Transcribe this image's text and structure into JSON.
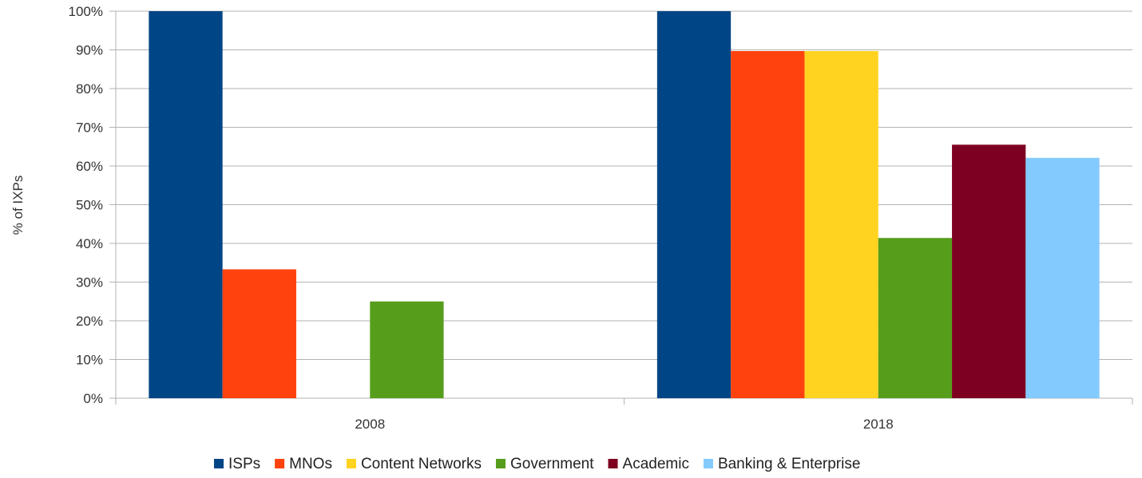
{
  "chart_data": {
    "type": "bar",
    "title": "",
    "xlabel": "",
    "ylabel": "% of IXPs",
    "ylim": [
      0,
      100
    ],
    "yticks": [
      "0%",
      "10%",
      "20%",
      "30%",
      "40%",
      "50%",
      "60%",
      "70%",
      "80%",
      "90%",
      "100%"
    ],
    "categories": [
      "2008",
      "2018"
    ],
    "grid": true,
    "legend_position": "bottom",
    "series": [
      {
        "name": "ISPs",
        "color": "#004586",
        "values": [
          100,
          100
        ]
      },
      {
        "name": "MNOs",
        "color": "#ff420e",
        "values": [
          33.3,
          89.7
        ]
      },
      {
        "name": "Content Networks",
        "color": "#ffd320",
        "values": [
          0,
          89.7
        ]
      },
      {
        "name": "Government",
        "color": "#579d1c",
        "values": [
          25,
          41.4
        ]
      },
      {
        "name": "Academic",
        "color": "#7e0021",
        "values": [
          0,
          65.5
        ]
      },
      {
        "name": "Banking & Enterprise",
        "color": "#83caff",
        "values": [
          0,
          62.1
        ]
      }
    ]
  }
}
